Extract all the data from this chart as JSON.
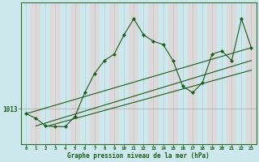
{
  "xlabel": "Graphe pression niveau de la mer (hPa)",
  "bg_color": "#cce8ec",
  "plot_bg_color": "#cce8ec",
  "line_color": "#1a5c1a",
  "grid_color_v": "#ddbbbb",
  "grid_color_h": "#aaaaaa",
  "label_color": "#1a5c1a",
  "xtick_labels": [
    "0",
    "1",
    "2",
    "3",
    "4",
    "5",
    "6",
    "7",
    "8",
    "9",
    "10",
    "11",
    "12",
    "13",
    "14",
    "15",
    "16",
    "17",
    "18",
    "19",
    "20",
    "21",
    "22",
    "23"
  ],
  "ytick_label": "1013",
  "ytick_value": 1013,
  "ylim": [
    1007.5,
    1029.5
  ],
  "xlim": [
    -0.5,
    23.5
  ],
  "series1_x": [
    0,
    1,
    2,
    3,
    4,
    5,
    6,
    7,
    8,
    9,
    10,
    11,
    12,
    13,
    14,
    15,
    16,
    17,
    18,
    19,
    20,
    21,
    22,
    23
  ],
  "series1_y": [
    1012.2,
    1011.5,
    1010.3,
    1010.2,
    1010.2,
    1011.8,
    1015.5,
    1018.5,
    1020.5,
    1021.5,
    1024.5,
    1027.0,
    1024.5,
    1023.5,
    1023.0,
    1020.5,
    1016.5,
    1015.5,
    1017.0,
    1021.5,
    1022.0,
    1020.5,
    1027.0,
    1022.5
  ],
  "trend_lines": [
    {
      "x0": 0,
      "y0": 1012.2,
      "x1": 23,
      "y1": 1022.5
    },
    {
      "x0": 1,
      "y0": 1010.3,
      "x1": 23,
      "y1": 1020.5
    },
    {
      "x0": 2,
      "y0": 1010.2,
      "x1": 23,
      "y1": 1019.0
    }
  ],
  "col_stripe_color": "#e8d0d0",
  "col_stripe_alpha": 0.6
}
